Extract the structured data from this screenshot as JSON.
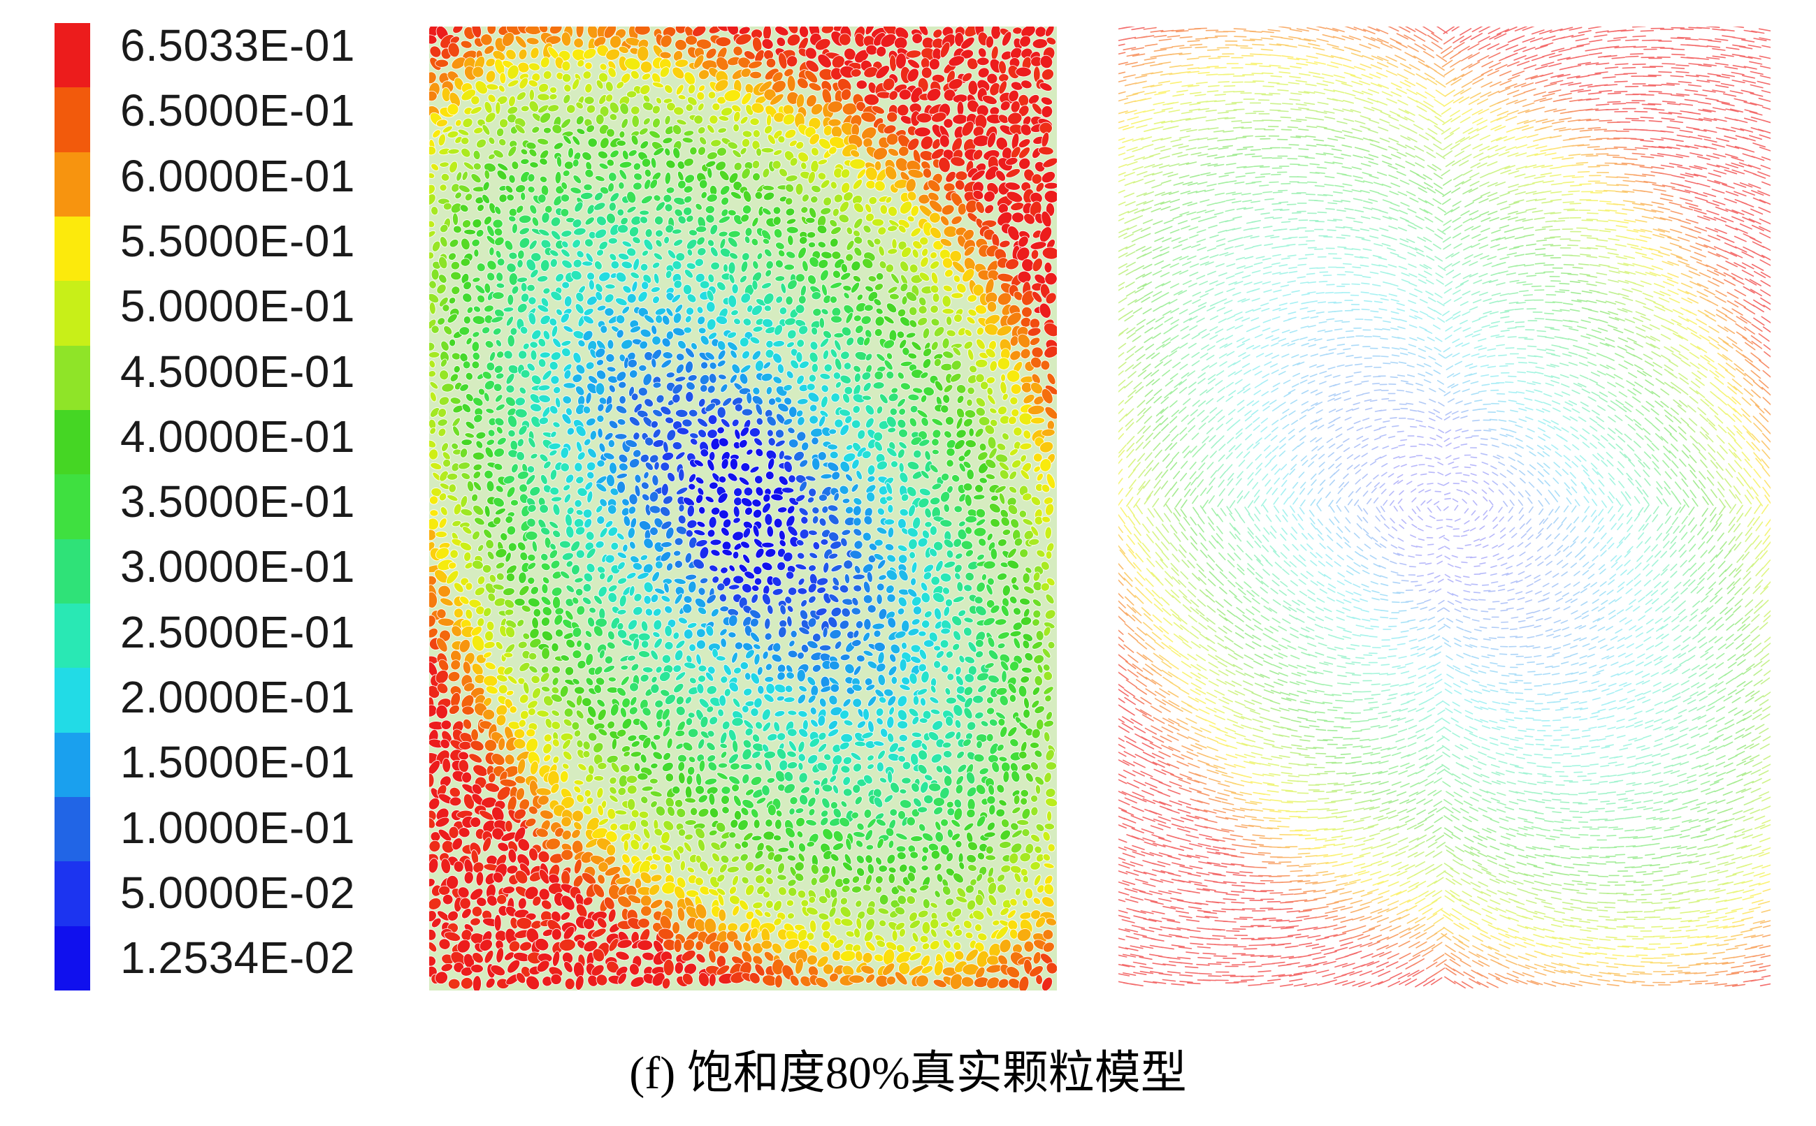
{
  "figure": {
    "caption": "(f) 饱和度80%真实颗粒模型"
  },
  "colorbar": {
    "labels": [
      "6.5033E-01",
      "6.5000E-01",
      "6.0000E-01",
      "5.5000E-01",
      "5.0000E-01",
      "4.5000E-01",
      "4.0000E-01",
      "3.5000E-01",
      "3.0000E-01",
      "2.5000E-01",
      "2.0000E-01",
      "1.5000E-01",
      "1.0000E-01",
      "5.0000E-02",
      "1.2534E-02"
    ],
    "colors": [
      "#ec1c1c",
      "#f25a0c",
      "#f7940f",
      "#fcea0c",
      "#c8ef18",
      "#8fe428",
      "#45d624",
      "#3fe040",
      "#2fe278",
      "#29e8b4",
      "#22dbe6",
      "#1aa0ee",
      "#2165e6",
      "#1c34f0",
      "#1010ee"
    ]
  }
}
